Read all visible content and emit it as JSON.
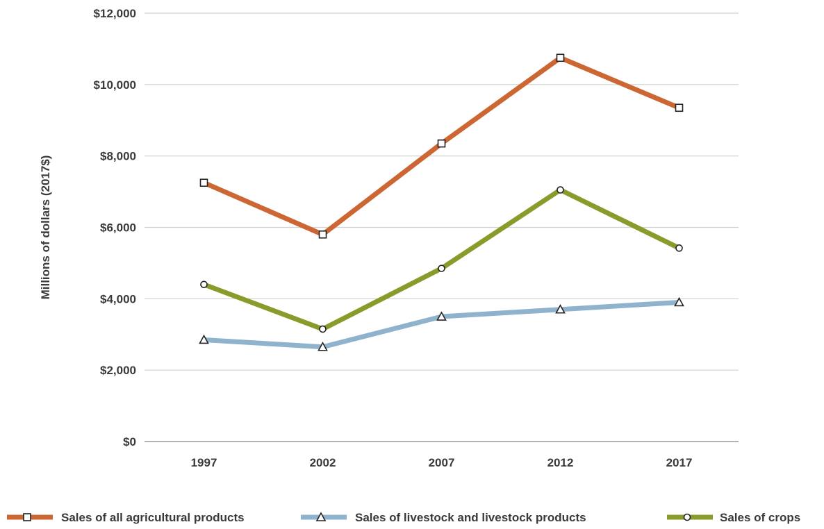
{
  "chart_data": {
    "type": "line",
    "title": "",
    "xlabel": "",
    "ylabel": "Millions of dollars (2017$)",
    "categories": [
      "1997",
      "2002",
      "2007",
      "2012",
      "2017"
    ],
    "ylim": [
      0,
      12000
    ],
    "yticks": [
      0,
      2000,
      4000,
      6000,
      8000,
      10000,
      12000
    ],
    "ytick_labels": [
      "$0",
      "$2,000",
      "$4,000",
      "$6,000",
      "$8,000",
      "$10,000",
      "$12,000"
    ],
    "grid": "horizontal",
    "legend_position": "bottom",
    "series": [
      {
        "name": "Sales of all agricultural products",
        "values": [
          7250,
          5800,
          8350,
          10750,
          9350
        ],
        "color": "#cc6633",
        "marker": "square"
      },
      {
        "name": "Sales of livestock and livestock products",
        "values": [
          2850,
          2650,
          3500,
          3700,
          3900
        ],
        "color": "#8fb3cc",
        "marker": "triangle"
      },
      {
        "name": "Sales of crops",
        "values": [
          4400,
          3150,
          4850,
          7050,
          5420
        ],
        "color": "#8a9a2b",
        "marker": "circle"
      }
    ]
  }
}
